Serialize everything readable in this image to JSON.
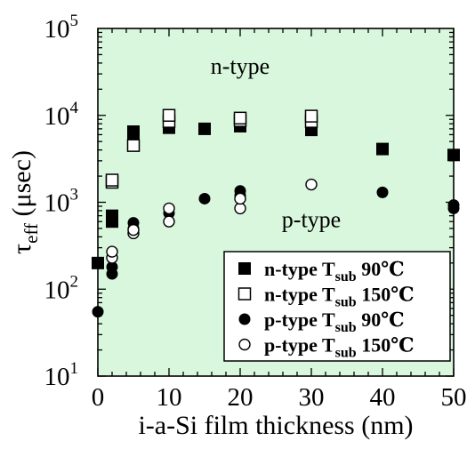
{
  "chart_data": {
    "type": "scatter",
    "xlabel": "i-a-Si film thickness (nm)",
    "ylabel": {
      "base": "τ",
      "sub": "eff",
      "rest": " (μsec)"
    },
    "xlim": [
      0,
      50
    ],
    "ylim": [
      10,
      100000
    ],
    "yscale": "log",
    "xticks": [
      "0",
      "10",
      "20",
      "30",
      "40",
      "50"
    ],
    "yticks": [
      {
        "base": "10",
        "exp": "1"
      },
      {
        "base": "10",
        "exp": "2"
      },
      {
        "base": "10",
        "exp": "3"
      },
      {
        "base": "10",
        "exp": "4"
      },
      {
        "base": "10",
        "exp": "5"
      }
    ],
    "background": "#d9f7dd",
    "grid": false,
    "legend_position": "bottom-right",
    "annotations": [
      {
        "text": "n-type",
        "x": 20,
        "y": 30000
      },
      {
        "text": "p-type",
        "x": 30,
        "y": 520
      }
    ],
    "series": [
      {
        "label": {
          "main": "n-type T",
          "sub": "sub",
          "tail": " 90℃"
        },
        "marker": "filled-square",
        "points": [
          [
            0,
            200
          ],
          [
            2,
            600
          ],
          [
            2,
            700
          ],
          [
            5,
            5500
          ],
          [
            5,
            6500
          ],
          [
            10,
            7200
          ],
          [
            15,
            7000
          ],
          [
            20,
            7500
          ],
          [
            20,
            8300
          ],
          [
            30,
            6800
          ],
          [
            40,
            4100
          ],
          [
            50,
            3500
          ]
        ]
      },
      {
        "label": {
          "main": "n-type T",
          "sub": "sub",
          "tail": " 150℃"
        },
        "marker": "open-square",
        "points": [
          [
            2,
            1700
          ],
          [
            2,
            1800
          ],
          [
            5,
            4500
          ],
          [
            10,
            8500
          ],
          [
            10,
            10000
          ],
          [
            20,
            8700
          ],
          [
            20,
            9300
          ],
          [
            30,
            8500
          ],
          [
            30,
            9800
          ]
        ]
      },
      {
        "label": {
          "main": "p-type T",
          "sub": "sub",
          "tail": " 90℃"
        },
        "marker": "filled-circle",
        "points": [
          [
            0,
            55
          ],
          [
            2,
            150
          ],
          [
            2,
            180
          ],
          [
            5,
            500
          ],
          [
            5,
            580
          ],
          [
            10,
            750
          ],
          [
            15,
            1100
          ],
          [
            20,
            1200
          ],
          [
            20,
            1350
          ],
          [
            40,
            1300
          ],
          [
            50,
            850
          ],
          [
            50,
            930
          ]
        ]
      },
      {
        "label": {
          "main": "p-type T",
          "sub": "sub",
          "tail": " 150℃"
        },
        "marker": "open-circle",
        "points": [
          [
            2,
            230
          ],
          [
            2,
            270
          ],
          [
            5,
            440
          ],
          [
            5,
            480
          ],
          [
            10,
            600
          ],
          [
            10,
            850
          ],
          [
            20,
            850
          ],
          [
            20,
            1100
          ],
          [
            30,
            1600
          ]
        ]
      }
    ]
  }
}
